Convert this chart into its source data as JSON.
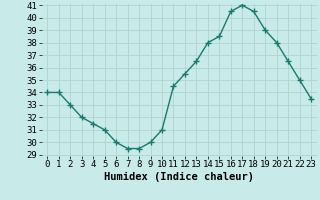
{
  "x": [
    0,
    1,
    2,
    3,
    4,
    5,
    6,
    7,
    8,
    9,
    10,
    11,
    12,
    13,
    14,
    15,
    16,
    17,
    18,
    19,
    20,
    21,
    22,
    23
  ],
  "y": [
    34,
    34,
    33,
    32,
    31.5,
    31,
    30,
    29.5,
    29.5,
    30,
    31,
    34.5,
    35.5,
    36.5,
    38,
    38.5,
    40.5,
    41,
    40.5,
    39,
    38,
    36.5,
    35,
    33.5
  ],
  "line_color": "#1a7a6e",
  "marker": "+",
  "marker_size": 4,
  "marker_lw": 1.0,
  "line_width": 1.0,
  "bg_color": "#c8eae8",
  "grid_color": "#b0d4d0",
  "xlabel": "Humidex (Indice chaleur)",
  "xlabel_fontsize": 7.5,
  "tick_fontsize": 6.5,
  "ylim": [
    29,
    41
  ],
  "yticks": [
    29,
    30,
    31,
    32,
    33,
    34,
    35,
    36,
    37,
    38,
    39,
    40,
    41
  ],
  "xlim": [
    -0.5,
    23.5
  ],
  "xticks": [
    0,
    1,
    2,
    3,
    4,
    5,
    6,
    7,
    8,
    9,
    10,
    11,
    12,
    13,
    14,
    15,
    16,
    17,
    18,
    19,
    20,
    21,
    22,
    23
  ],
  "xtick_labels": [
    "0",
    "1",
    "2",
    "3",
    "4",
    "5",
    "6",
    "7",
    "8",
    "9",
    "10",
    "11",
    "12",
    "13",
    "14",
    "15",
    "16",
    "17",
    "18",
    "19",
    "20",
    "21",
    "22",
    "23"
  ]
}
